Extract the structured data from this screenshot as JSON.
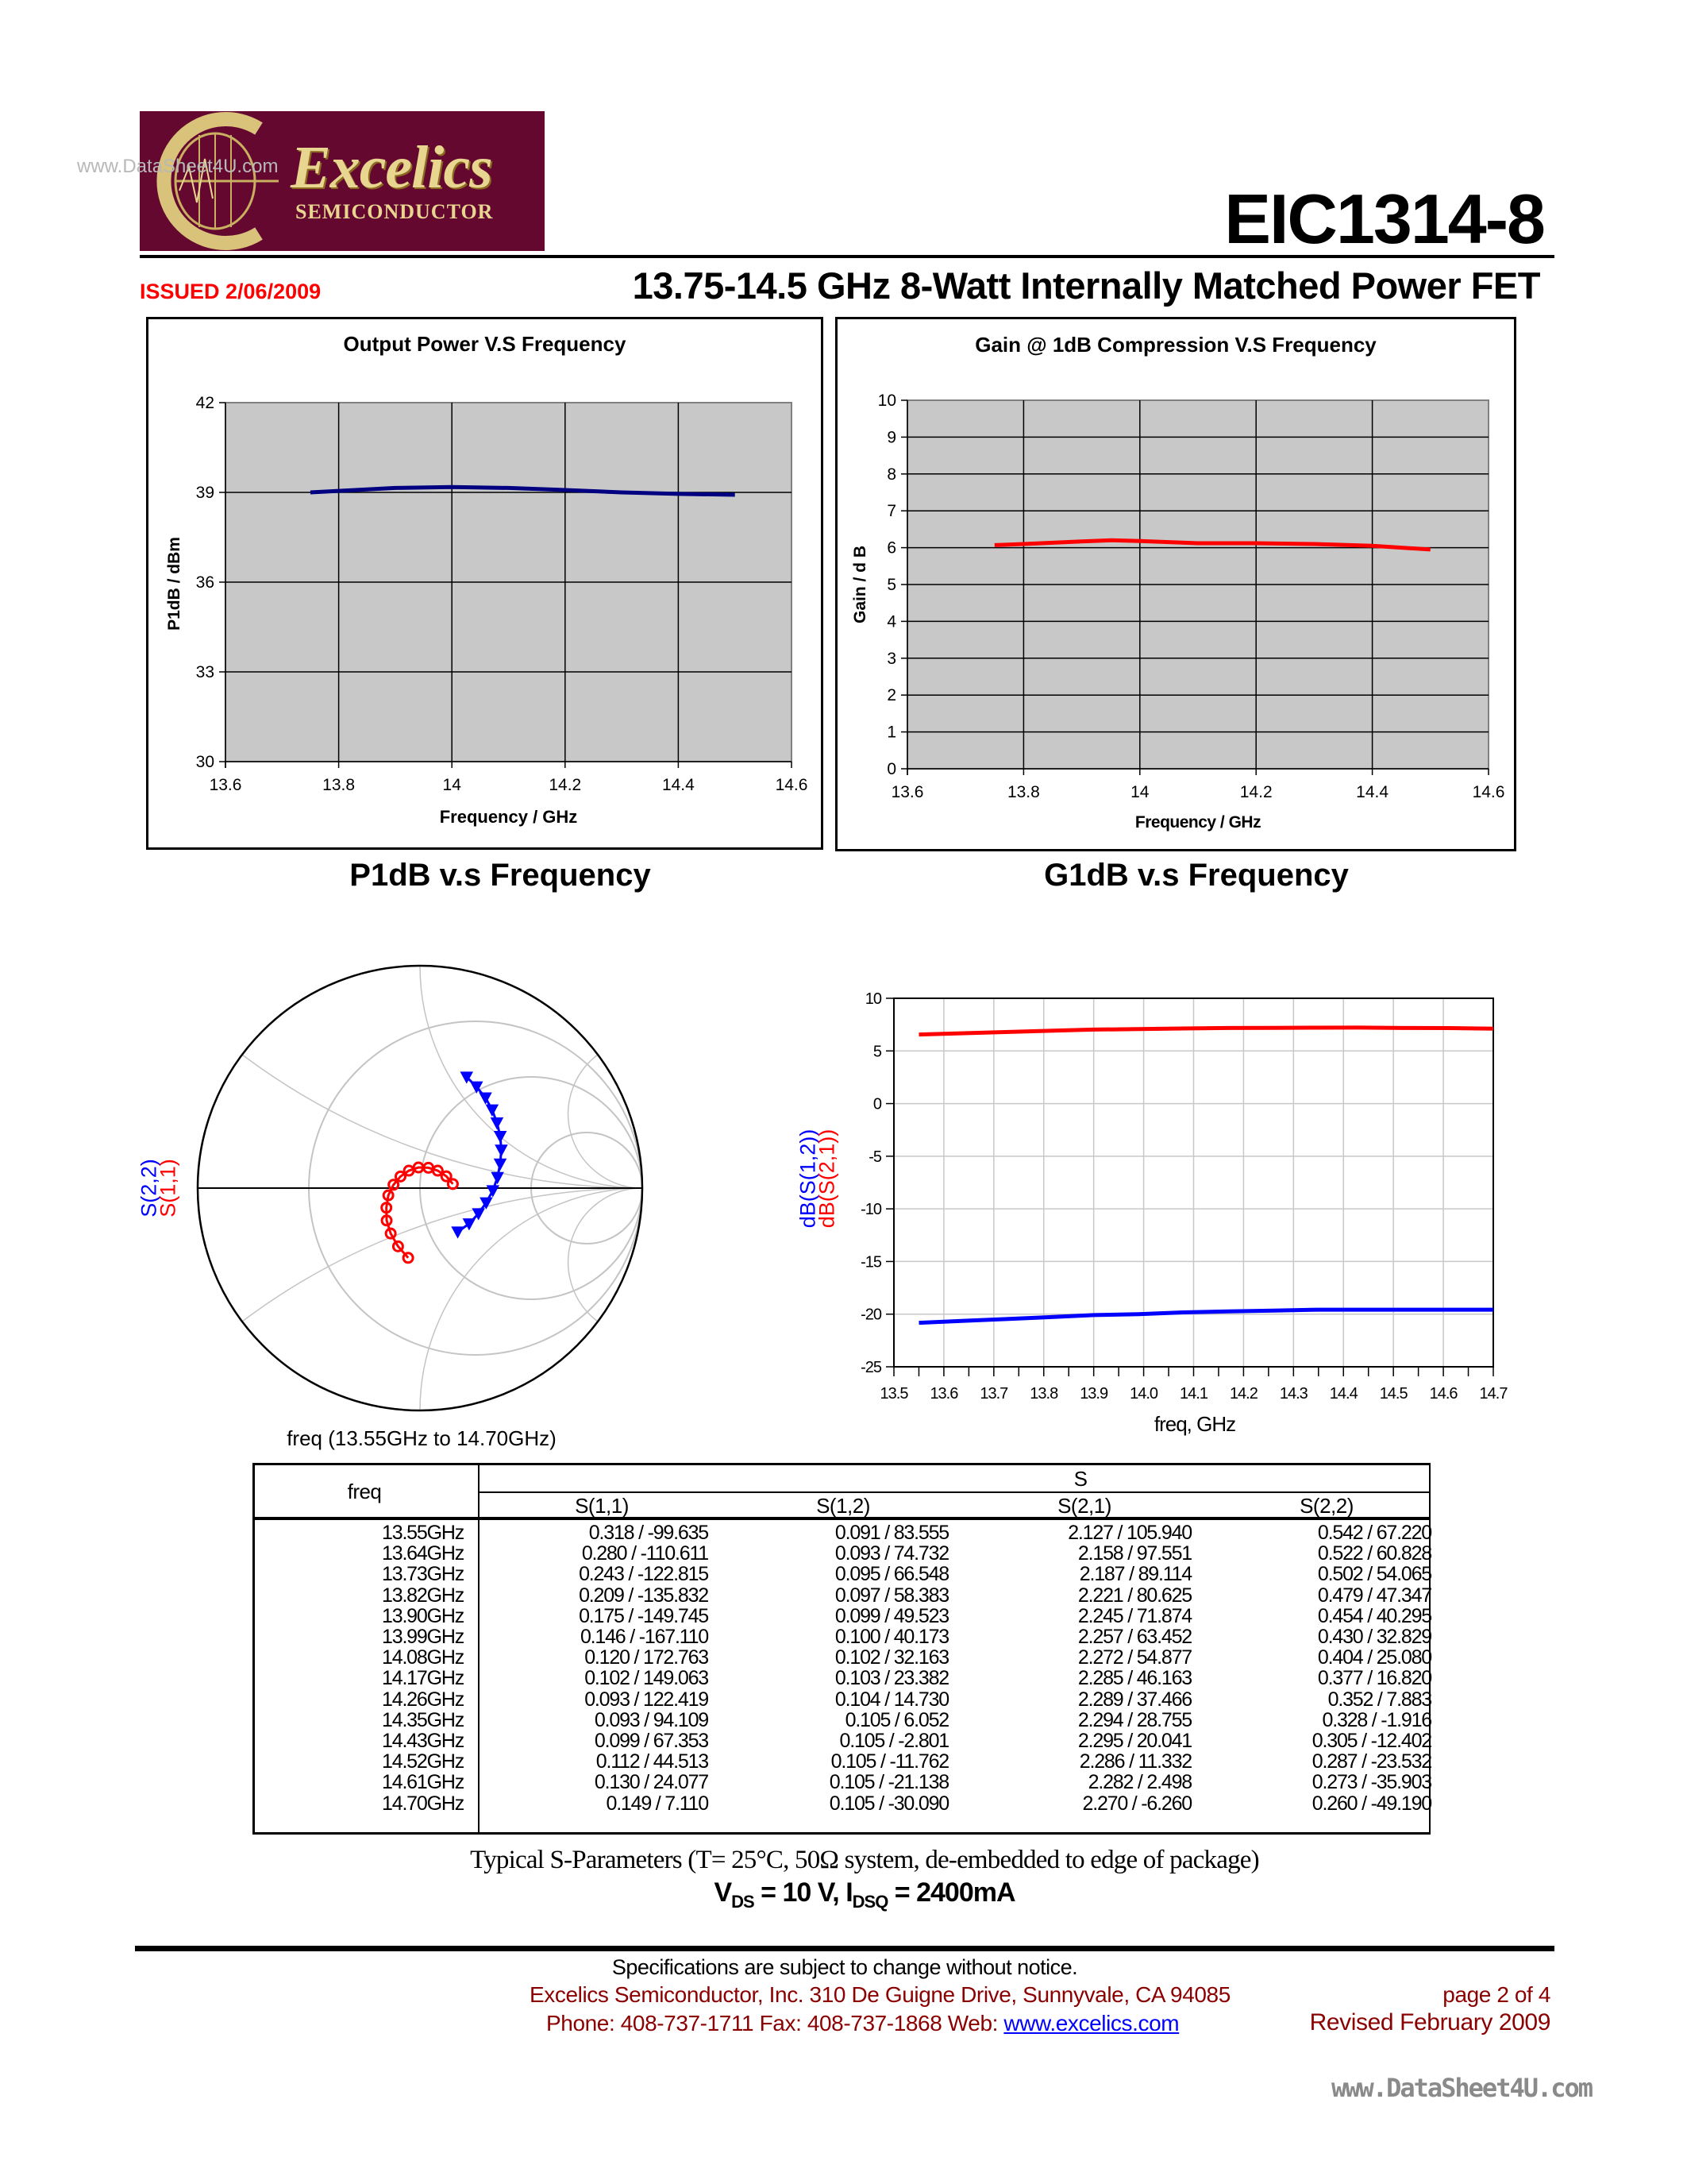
{
  "header": {
    "logo": {
      "brand": "Excelics",
      "sub": "SEMICONDUCTOR"
    },
    "watermark": "www.DataSheet4U.com",
    "part_number": "EIC1314-8",
    "issued": "ISSUED  2/06/2009",
    "title": "13.75-14.5 GHz 8-Watt Internally Matched Power FET"
  },
  "colors": {
    "brand": "#650830",
    "red": "#ff0000",
    "blue": "#0000ff",
    "navy": "#000080",
    "footer_red": "#8b0000"
  },
  "captions": {
    "p1db": "P1dB v.s Frequency",
    "g1db": "G1dB v.s Frequency"
  },
  "chart_data": [
    {
      "type": "line",
      "title": "Output Power V.S Frequency",
      "xlabel": "Frequency / GHz",
      "ylabel": "P1dB / dBm",
      "xlim": [
        13.6,
        14.6
      ],
      "ylim": [
        30,
        42
      ],
      "xticks": [
        "13.6",
        "13.8",
        "14",
        "14.2",
        "14.4",
        "14.6"
      ],
      "yticks": [
        "30",
        "33",
        "36",
        "39",
        "42"
      ],
      "grid": true,
      "color": "#000080",
      "x": [
        13.75,
        13.8,
        13.9,
        14.0,
        14.1,
        14.2,
        14.3,
        14.4,
        14.5
      ],
      "y": [
        39.0,
        39.05,
        39.15,
        39.18,
        39.15,
        39.08,
        39.0,
        38.95,
        38.92
      ]
    },
    {
      "type": "line",
      "title": "Gain @ 1dB Compression V.S Frequency",
      "xlabel": "Frequency / GHz",
      "ylabel": "Gain / d B",
      "xlim": [
        13.6,
        14.6
      ],
      "ylim": [
        0,
        10
      ],
      "xticks": [
        "13.6",
        "13.8",
        "14",
        "14.2",
        "14.4",
        "14.6"
      ],
      "yticks": [
        "0",
        "1",
        "2",
        "3",
        "4",
        "5",
        "6",
        "7",
        "8",
        "9",
        "10"
      ],
      "grid": true,
      "color": "#ff0000",
      "x": [
        13.75,
        13.8,
        13.9,
        13.95,
        14.0,
        14.1,
        14.2,
        14.3,
        14.4,
        14.5
      ],
      "y": [
        6.07,
        6.1,
        6.17,
        6.2,
        6.18,
        6.12,
        6.12,
        6.1,
        6.05,
        5.95
      ]
    },
    {
      "type": "smith",
      "caption": "freq (13.55GHz to 14.70GHz)",
      "series": [
        {
          "name": "S(2,2)",
          "color": "#0000ff",
          "marker": "triangle-down",
          "mag": [
            0.542,
            0.522,
            0.502,
            0.479,
            0.454,
            0.43,
            0.404,
            0.377,
            0.352,
            0.328,
            0.305,
            0.287,
            0.273,
            0.26
          ],
          "ang": [
            67.22,
            60.828,
            54.065,
            47.347,
            40.295,
            32.829,
            25.08,
            16.82,
            7.883,
            -1.916,
            -12.402,
            -23.532,
            -35.903,
            -49.19
          ]
        },
        {
          "name": "S(1,1)",
          "color": "#ff0000",
          "marker": "circle",
          "mag": [
            0.318,
            0.28,
            0.243,
            0.209,
            0.175,
            0.146,
            0.12,
            0.102,
            0.093,
            0.093,
            0.099,
            0.112,
            0.13,
            0.149
          ],
          "ang": [
            -99.635,
            -110.611,
            -122.815,
            -135.832,
            -149.745,
            -167.11,
            172.763,
            149.063,
            122.419,
            94.109,
            67.353,
            44.513,
            24.077,
            7.11
          ]
        }
      ]
    },
    {
      "type": "line",
      "xlabel": "freq, GHz",
      "xlim": [
        13.5,
        14.7
      ],
      "ylim": [
        -25,
        10
      ],
      "xticks": [
        "13.5",
        "13.6",
        "13.7",
        "13.8",
        "13.9",
        "14.0",
        "14.1",
        "14.2",
        "14.3",
        "14.4",
        "14.5",
        "14.6",
        "14.7"
      ],
      "yticks": [
        "-25",
        "-20",
        "-15",
        "-10",
        "-5",
        "0",
        "5",
        "10"
      ],
      "grid": true,
      "x": [
        13.55,
        13.64,
        13.73,
        13.82,
        13.9,
        13.99,
        14.08,
        14.17,
        14.26,
        14.35,
        14.43,
        14.52,
        14.61,
        14.7
      ],
      "series": [
        {
          "name": "dB(S(1,2))",
          "color": "#0000ff",
          "values": [
            -20.82,
            -20.63,
            -20.45,
            -20.26,
            -20.09,
            -20.0,
            -19.83,
            -19.74,
            -19.66,
            -19.58,
            -19.58,
            -19.58,
            -19.58,
            -19.58
          ]
        },
        {
          "name": "dB(S(2,1))",
          "color": "#ff0000",
          "values": [
            6.56,
            6.68,
            6.8,
            6.93,
            7.03,
            7.07,
            7.13,
            7.18,
            7.19,
            7.21,
            7.22,
            7.18,
            7.17,
            7.12
          ]
        }
      ]
    }
  ],
  "table": {
    "freq_header": "freq",
    "group_header": "S",
    "columns": [
      "S(1,1)",
      "S(1,2)",
      "S(2,1)",
      "S(2,2)"
    ],
    "rows": [
      [
        "13.55GHz",
        "0.318 / -99.635",
        "0.091 / 83.555",
        "2.127 / 105.940",
        "0.542 / 67.220"
      ],
      [
        "13.64GHz",
        "0.280 / -110.611",
        "0.093 / 74.732",
        "2.158 / 97.551",
        "0.522 / 60.828"
      ],
      [
        "13.73GHz",
        "0.243 / -122.815",
        "0.095 / 66.548",
        "2.187 / 89.114",
        "0.502 / 54.065"
      ],
      [
        "13.82GHz",
        "0.209 / -135.832",
        "0.097 / 58.383",
        "2.221 / 80.625",
        "0.479 / 47.347"
      ],
      [
        "13.90GHz",
        "0.175 / -149.745",
        "0.099 / 49.523",
        "2.245 / 71.874",
        "0.454 / 40.295"
      ],
      [
        "13.99GHz",
        "0.146 / -167.110",
        "0.100 / 40.173",
        "2.257 / 63.452",
        "0.430 / 32.829"
      ],
      [
        "14.08GHz",
        "0.120 / 172.763",
        "0.102 / 32.163",
        "2.272 / 54.877",
        "0.404 / 25.080"
      ],
      [
        "14.17GHz",
        "0.102 / 149.063",
        "0.103 / 23.382",
        "2.285 / 46.163",
        "0.377 / 16.820"
      ],
      [
        "14.26GHz",
        "0.093 / 122.419",
        "0.104 / 14.730",
        "2.289 / 37.466",
        "0.352 / 7.883"
      ],
      [
        "14.35GHz",
        "0.093 / 94.109",
        "0.105 / 6.052",
        "2.294 / 28.755",
        "0.328 / -1.916"
      ],
      [
        "14.43GHz",
        "0.099 / 67.353",
        "0.105 / -2.801",
        "2.295 / 20.041",
        "0.305 / -12.402"
      ],
      [
        "14.52GHz",
        "0.112 / 44.513",
        "0.105 / -11.762",
        "2.286 / 11.332",
        "0.287 / -23.532"
      ],
      [
        "14.61GHz",
        "0.130 / 24.077",
        "0.105 / -21.138",
        "2.282 / 2.498",
        "0.273 / -35.903"
      ],
      [
        "14.70GHz",
        "0.149 / 7.110",
        "0.105 / -30.090",
        "2.270 / -6.260",
        "0.260 / -49.190"
      ]
    ]
  },
  "sparam_note": "Typical S-Parameters (T= 25°C, 50Ω system, de-embedded to edge of package)",
  "bias": {
    "v": "V",
    "v_sub": "DS",
    "v_val": " = 10 V, I",
    "i_sub": "DSQ",
    "i_val": " = 2400mA"
  },
  "footer": {
    "spec": "Specifications are subject to change without notice.",
    "address": "Excelics Semiconductor, Inc.  310 De Guigne Drive, Sunnyvale, CA  94085",
    "phone_fax": "Phone: 408-737-1711  Fax: 408-737-1868  Web: ",
    "web": "www.excelics.com",
    "page": "page 2 of 4",
    "revised": "Revised February 2009",
    "watermark": "www.DataSheet4U.com"
  }
}
